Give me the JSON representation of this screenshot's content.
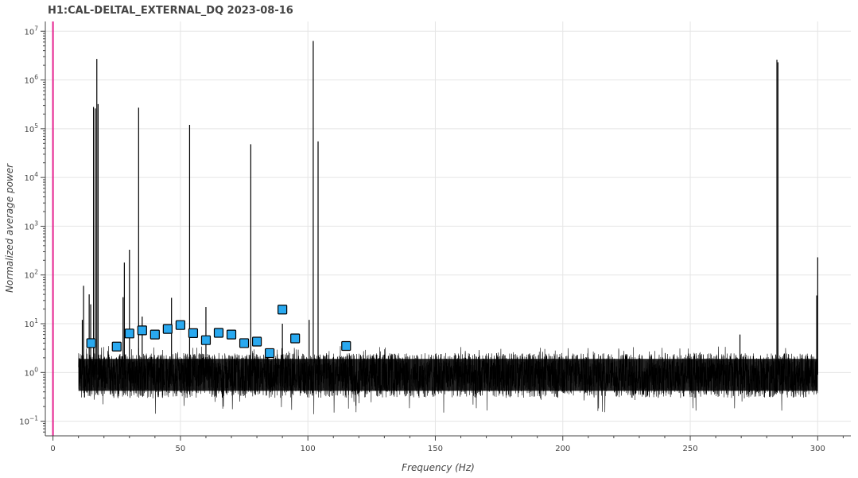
{
  "chart_data": {
    "type": "line",
    "title": "H1:CAL-DELTAL_EXTERNAL_DQ 2023-08-16",
    "xlabel": "Frequency (Hz)",
    "ylabel": "Normalized average power",
    "xlim": [
      -3,
      313
    ],
    "ylim_log10": [
      -1.3,
      7.2
    ],
    "y_scale": "log",
    "grid": true,
    "x_ticks": [
      0,
      50,
      100,
      150,
      200,
      250,
      300
    ],
    "y_ticks": [
      {
        "base": "10",
        "exp": "7"
      },
      {
        "base": "10",
        "exp": "6"
      },
      {
        "base": "10",
        "exp": "5"
      },
      {
        "base": "10",
        "exp": "4"
      },
      {
        "base": "10",
        "exp": "3"
      },
      {
        "base": "10",
        "exp": "2"
      },
      {
        "base": "10",
        "exp": "1"
      },
      {
        "base": "10",
        "exp": "0"
      },
      {
        "base": "10",
        "exp": "−1"
      }
    ],
    "vertical_marker": {
      "x": 0,
      "color": "#e6228f"
    },
    "series": [
      {
        "line_color": "#000000",
        "noise_range": [
          10,
          300
        ],
        "noise_band": [
          0.3,
          2.5
        ],
        "peaks": [
          {
            "x": 11.5,
            "y": 12
          },
          {
            "x": 12.0,
            "y": 60
          },
          {
            "x": 14.2,
            "y": 40
          },
          {
            "x": 14.8,
            "y": 25
          },
          {
            "x": 15.9,
            "y": 280000
          },
          {
            "x": 16.6,
            "y": 260000
          },
          {
            "x": 17.2,
            "y": 2700000
          },
          {
            "x": 17.7,
            "y": 320000
          },
          {
            "x": 27.5,
            "y": 35
          },
          {
            "x": 28.0,
            "y": 180
          },
          {
            "x": 30.0,
            "y": 330
          },
          {
            "x": 33.6,
            "y": 270000
          },
          {
            "x": 35.0,
            "y": 14
          },
          {
            "x": 46.5,
            "y": 34
          },
          {
            "x": 53.6,
            "y": 120000
          },
          {
            "x": 60.0,
            "y": 22
          },
          {
            "x": 77.6,
            "y": 48000
          },
          {
            "x": 90.0,
            "y": 10
          },
          {
            "x": 100.5,
            "y": 12
          },
          {
            "x": 102.1,
            "y": 6300000
          },
          {
            "x": 104.0,
            "y": 55000
          },
          {
            "x": 269.5,
            "y": 6
          },
          {
            "x": 284.0,
            "y": 2600000
          },
          {
            "x": 284.4,
            "y": 2300000
          },
          {
            "x": 299.6,
            "y": 38
          },
          {
            "x": 300.0,
            "y": 230
          }
        ]
      }
    ],
    "markers": {
      "shape": "square",
      "fill": "#29a9f0",
      "stroke": "#000000",
      "points": [
        {
          "x": 15,
          "y": 4.0
        },
        {
          "x": 25,
          "y": 3.4
        },
        {
          "x": 30,
          "y": 6.3
        },
        {
          "x": 35,
          "y": 7.3
        },
        {
          "x": 40,
          "y": 6.0
        },
        {
          "x": 45,
          "y": 7.8
        },
        {
          "x": 50,
          "y": 9.4
        },
        {
          "x": 55,
          "y": 6.4
        },
        {
          "x": 60,
          "y": 4.6
        },
        {
          "x": 65,
          "y": 6.5
        },
        {
          "x": 70,
          "y": 6.0
        },
        {
          "x": 75,
          "y": 4.0
        },
        {
          "x": 80,
          "y": 4.3
        },
        {
          "x": 85,
          "y": 2.5
        },
        {
          "x": 90,
          "y": 19.5
        },
        {
          "x": 95,
          "y": 5.0
        },
        {
          "x": 115,
          "y": 3.5
        }
      ]
    }
  }
}
